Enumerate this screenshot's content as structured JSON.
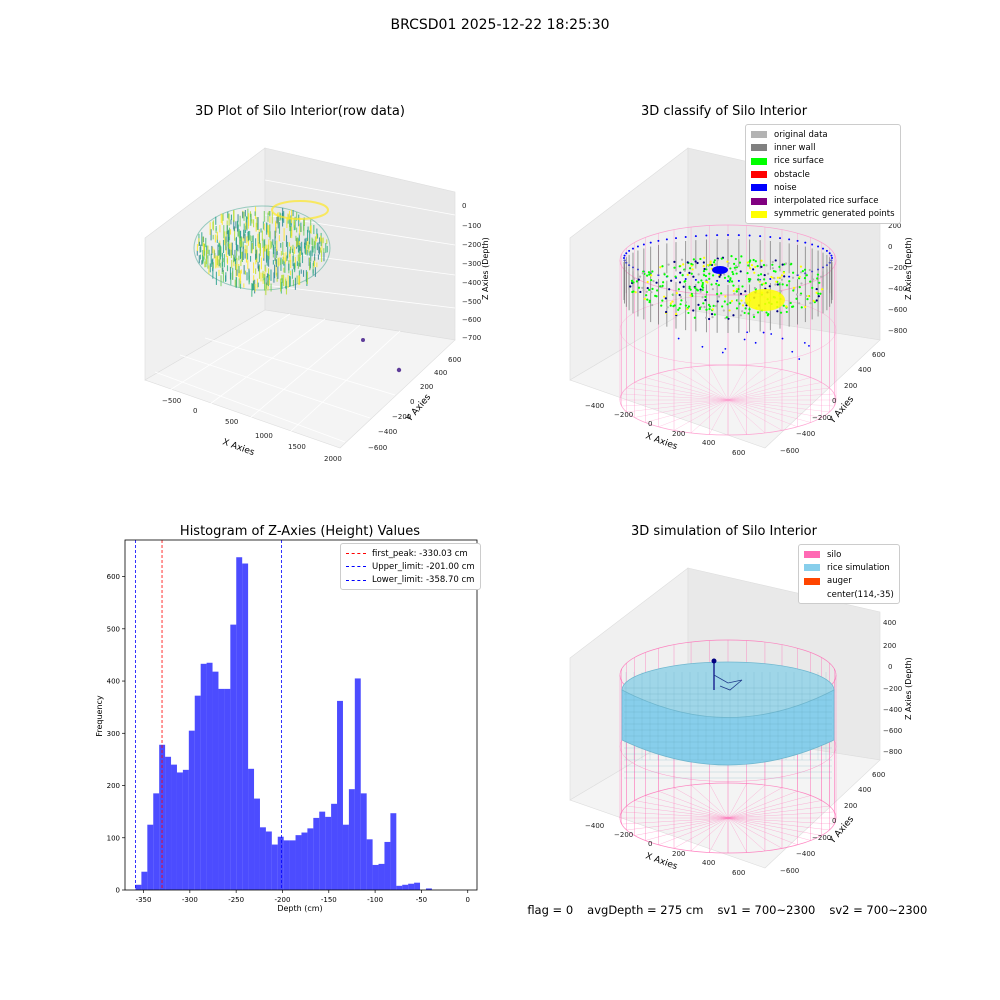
{
  "suptitle": "BRCSD01 2025-12-22 18:25:30",
  "status": {
    "flag": "flag = 0",
    "avg_depth": "avgDepth = 275 cm",
    "sv1": "sv1 = 700~2300",
    "sv2": "sv2 = 700~2300"
  },
  "chart_data": [
    {
      "type": "scatter",
      "subtype": "3d",
      "title": "3D Plot of Silo Interior(row data)",
      "xlabel": "X Axies",
      "ylabel": "Y Axies",
      "zlabel": "Z Axies (Depth)",
      "x_ticks": [
        "−500",
        "0",
        "500",
        "1000",
        "1500",
        "2000"
      ],
      "y_ticks": [
        "−600",
        "−400",
        "−200",
        "0",
        "200",
        "400",
        "600"
      ],
      "z_ticks": [
        "0",
        "−100",
        "−200",
        "−300",
        "−400",
        "−500",
        "−600",
        "−700"
      ],
      "colormap": "viridis",
      "outlier_points": [
        {
          "x": 1500,
          "y": 300,
          "z": -700
        },
        {
          "x": 1800,
          "y": 500,
          "z": -700
        }
      ]
    },
    {
      "type": "scatter",
      "subtype": "3d",
      "title": "3D classify of Silo Interior",
      "xlabel": "X Axies",
      "ylabel": "Y Axies",
      "zlabel": "Z Axies (Depth)",
      "x_ticks": [
        "−400",
        "−200",
        "0",
        "200",
        "400",
        "600"
      ],
      "y_ticks": [
        "−600",
        "−400",
        "−200",
        "0",
        "200",
        "400",
        "600"
      ],
      "z_ticks": [
        "200",
        "0",
        "−200",
        "−400",
        "−600",
        "−800"
      ],
      "legend": [
        {
          "label": "original data",
          "color": "#b3b3b3"
        },
        {
          "label": "inner wall",
          "color": "#808080"
        },
        {
          "label": "rice surface",
          "color": "#00ff00"
        },
        {
          "label": "obstacle",
          "color": "#ff0000"
        },
        {
          "label": "noise",
          "color": "#0000ff"
        },
        {
          "label": "interpolated rice surface",
          "color": "#800080"
        },
        {
          "label": "symmetric generated points",
          "color": "#ffff00"
        }
      ]
    },
    {
      "type": "bar",
      "subtype": "histogram",
      "title": "Histogram of Z-Axies (Height) Values",
      "xlabel": "Depth (cm)",
      "ylabel": "Frequency",
      "xlim": [
        -370,
        10
      ],
      "ylim": [
        0,
        670
      ],
      "x_ticks": [
        -350,
        -300,
        -250,
        -200,
        -150,
        -100,
        -50,
        0
      ],
      "y_ticks": [
        0,
        100,
        200,
        300,
        400,
        500,
        600
      ],
      "bin_width": 6.4,
      "bin_start": -358.7,
      "color": "#0000ff",
      "alpha": 0.7,
      "values": [
        10,
        35,
        125,
        185,
        278,
        255,
        240,
        225,
        230,
        305,
        372,
        433,
        435,
        418,
        385,
        385,
        508,
        637,
        625,
        232,
        175,
        120,
        112,
        87,
        102,
        95,
        95,
        105,
        110,
        118,
        138,
        150,
        140,
        165,
        362,
        125,
        193,
        405,
        185,
        97,
        48,
        50,
        92,
        147,
        8,
        10,
        12,
        14,
        0,
        3
      ],
      "vlines": [
        {
          "label": "first_peak: -330.03 cm",
          "x": -330.03,
          "color": "#ff0000"
        },
        {
          "label": "Upper_limit: -201.00 cm",
          "x": -201.0,
          "color": "#0000ff"
        },
        {
          "label": "Lower_limit: -358.70 cm",
          "x": -358.7,
          "color": "#0000ff"
        }
      ],
      "legend_position": "top-right"
    },
    {
      "type": "scatter",
      "subtype": "3d",
      "title": "3D simulation of Silo Interior",
      "xlabel": "X Axies",
      "ylabel": "Y Axies",
      "zlabel": "Z Axies (Depth)",
      "x_ticks": [
        "−400",
        "−200",
        "0",
        "200",
        "400",
        "600"
      ],
      "y_ticks": [
        "−600",
        "−400",
        "−200",
        "0",
        "200",
        "400",
        "600"
      ],
      "z_ticks": [
        "400",
        "200",
        "0",
        "−200",
        "−400",
        "−600",
        "−800"
      ],
      "legend": [
        {
          "label": "silo",
          "color": "#ff69b4"
        },
        {
          "label": "rice simulation",
          "color": "#87ceeb"
        },
        {
          "label": "auger",
          "color": "#ff4500"
        },
        {
          "label": "center(114,-35)",
          "color": ""
        }
      ]
    }
  ]
}
